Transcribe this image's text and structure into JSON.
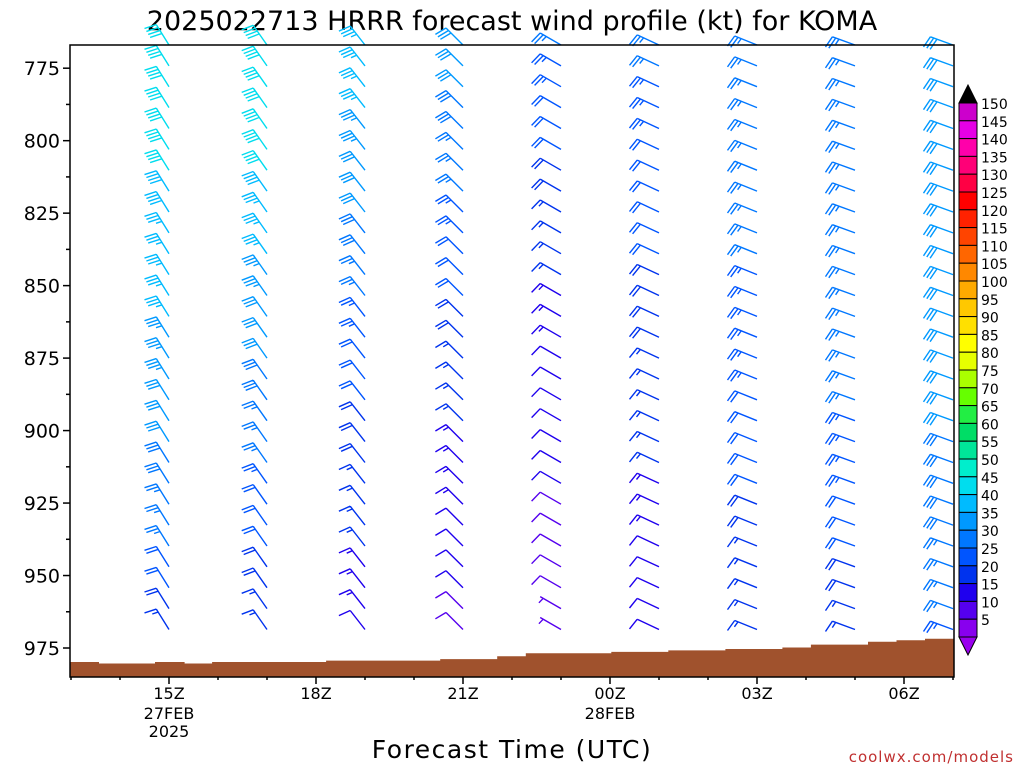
{
  "title": "2025022713 HRRR forecast wind profile (kt) for KOMA",
  "credit": "coolwx.com/models",
  "chart_data": {
    "type": "wind-barb-profile",
    "title": "2025022713 HRRR forecast wind profile (kt) for KOMA",
    "xlabel": "Forecast Time (UTC)",
    "ylabel": "",
    "x_ticks": [
      {
        "label": "15Z",
        "sub": [
          "27FEB",
          "2025"
        ]
      },
      {
        "label": "18Z",
        "sub": []
      },
      {
        "label": "21Z",
        "sub": []
      },
      {
        "label": "00Z",
        "sub": [
          "28FEB"
        ]
      },
      {
        "label": "03Z",
        "sub": []
      },
      {
        "label": "06Z",
        "sub": []
      }
    ],
    "y_axis": {
      "ticks": [
        775,
        800,
        825,
        850,
        875,
        900,
        925,
        950,
        975
      ],
      "range": [
        767,
        985
      ]
    },
    "colorbar": {
      "labels": [
        150,
        145,
        140,
        135,
        130,
        125,
        120,
        115,
        110,
        105,
        100,
        95,
        90,
        85,
        80,
        75,
        70,
        65,
        60,
        55,
        50,
        45,
        40,
        35,
        30,
        25,
        20,
        15,
        10,
        5
      ],
      "colors": [
        "#cc00cc",
        "#e600e6",
        "#ff00aa",
        "#ff0077",
        "#ff0044",
        "#ff0000",
        "#ff2200",
        "#ff4400",
        "#ff6600",
        "#ff8800",
        "#ffaa00",
        "#ffc800",
        "#ffe000",
        "#ffff00",
        "#e6ff00",
        "#aaff00",
        "#66ff00",
        "#22ee44",
        "#00dd66",
        "#00e699",
        "#00eecc",
        "#00ddee",
        "#00bbff",
        "#0099ff",
        "#0077ff",
        "#0055ff",
        "#0033ee",
        "#1f00ee",
        "#5500ee",
        "#8800ee"
      ]
    },
    "times": [
      {
        "dir": 328,
        "speeds": [
          40,
          40,
          40,
          41,
          40,
          40,
          40,
          38,
          38,
          37,
          36,
          35,
          35,
          35,
          34,
          33,
          33,
          32,
          31,
          30,
          29,
          28,
          27,
          26,
          25,
          22,
          20,
          18,
          16,
          14,
          10
        ]
      },
      {
        "dir": 325,
        "speeds": [
          40,
          40,
          40,
          41,
          40,
          40,
          40,
          38,
          37,
          36,
          35,
          34,
          33,
          32,
          31,
          30,
          29,
          28,
          27,
          26,
          25,
          23,
          22,
          21,
          20,
          19,
          18,
          17,
          15,
          13,
          10
        ]
      },
      {
        "dir": 322,
        "speeds": [
          37,
          36,
          36,
          35,
          34,
          33,
          32,
          31,
          30,
          29,
          28,
          26,
          25,
          24,
          23,
          22,
          21,
          20,
          19,
          19,
          18,
          17,
          17,
          16,
          15,
          14,
          14,
          13,
          12,
          11,
          8
        ]
      },
      {
        "dir": 315,
        "speeds": [
          30,
          30,
          30,
          29,
          28,
          27,
          26,
          25,
          24,
          23,
          22,
          21,
          20,
          19,
          18,
          17,
          16,
          16,
          15,
          14,
          14,
          13,
          13,
          12,
          11,
          10,
          10,
          9,
          8,
          7,
          5
        ]
      },
      {
        "dir": 300,
        "speeds": [
          25,
          24,
          23,
          22,
          21,
          20,
          19,
          18,
          17,
          16,
          15,
          15,
          14,
          13,
          13,
          12,
          12,
          11,
          11,
          10,
          10,
          10,
          9,
          9,
          8,
          8,
          8,
          7,
          7,
          6,
          5
        ]
      },
      {
        "dir": 295,
        "speeds": [
          25,
          25,
          24,
          24,
          23,
          22,
          22,
          21,
          21,
          20,
          20,
          19,
          19,
          18,
          18,
          17,
          17,
          16,
          16,
          15,
          15,
          14,
          14,
          13,
          12,
          12,
          11,
          11,
          10,
          10,
          9
        ]
      },
      {
        "dir": 292,
        "speeds": [
          25,
          26,
          26,
          26,
          26,
          25,
          25,
          25,
          25,
          25,
          25,
          24,
          24,
          24,
          24,
          23,
          23,
          22,
          22,
          21,
          20,
          20,
          19,
          18,
          17,
          16,
          16,
          15,
          15,
          14,
          13
        ]
      },
      {
        "dir": 290,
        "speeds": [
          25,
          26,
          26,
          27,
          27,
          27,
          27,
          27,
          27,
          27,
          26,
          26,
          26,
          26,
          26,
          25,
          25,
          25,
          24,
          24,
          23,
          23,
          22,
          21,
          20,
          19,
          18,
          17,
          16,
          15,
          14
        ]
      },
      {
        "dir": 290,
        "speeds": [
          30,
          30,
          30,
          30,
          30,
          31,
          31,
          31,
          31,
          31,
          31,
          31,
          31,
          30,
          30,
          30,
          30,
          30,
          30,
          29,
          29,
          29,
          28,
          28,
          27,
          27,
          26,
          25,
          24,
          22,
          20
        ]
      }
    ],
    "terrain_levels_mb": [
      980,
      980.5,
      980.5,
      980,
      980.5,
      980,
      980,
      980,
      980,
      979.5,
      979.5,
      979.5,
      979.5,
      979,
      979,
      978,
      977,
      977,
      977,
      976.5,
      976.5,
      976,
      976,
      975.5,
      975.5,
      975,
      974,
      974,
      973,
      972.5,
      972
    ]
  }
}
